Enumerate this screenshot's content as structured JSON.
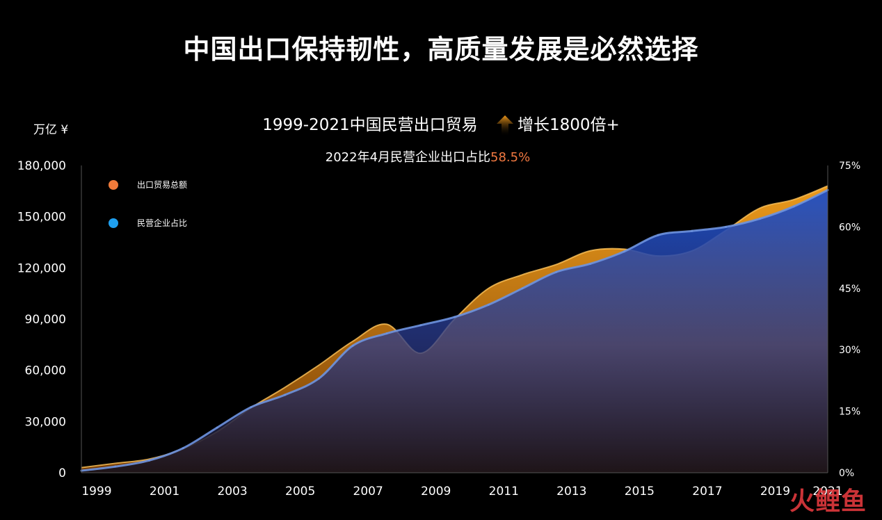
{
  "title": "中国出口保持韧性，高质量发展是必然选择",
  "subtitle_main": "1999-2021中国民营出口贸易",
  "subtitle_growth": "增长1800倍+",
  "note_prefix": "2022年4月民营企业出口占比",
  "note_value": "58.5%",
  "unit_label": "万亿 ¥",
  "watermark": "火鲤鱼",
  "colors": {
    "orange": "#f29a1b",
    "blue": "#2a57c8",
    "line_blue": "#5a8ce0",
    "highlight": "#f07840"
  },
  "chart_data": {
    "type": "area",
    "x_labels": [
      "1999",
      "2001",
      "2003",
      "2005",
      "2007",
      "2009",
      "2011",
      "2013",
      "2015",
      "2017",
      "2019",
      "2021"
    ],
    "x": [
      1999,
      2000,
      2001,
      2002,
      2003,
      2004,
      2005,
      2006,
      2007,
      2008,
      2009,
      2010,
      2011,
      2012,
      2013,
      2014,
      2015,
      2016,
      2017,
      2018,
      2019,
      2020,
      2021
    ],
    "series": [
      {
        "name": "出口贸易总额",
        "axis": "left",
        "color": "#f29a1b",
        "values": [
          3000,
          5500,
          8000,
          14000,
          24000,
          38000,
          50000,
          63000,
          77000,
          87000,
          70000,
          90000,
          108000,
          116000,
          122000,
          130000,
          131000,
          127000,
          130000,
          142000,
          155000,
          160000,
          168000
        ]
      },
      {
        "name": "民营企业占比",
        "axis": "right",
        "color": "#2a57c8",
        "values": [
          0.5,
          1.5,
          3,
          6,
          11,
          16,
          19,
          23,
          31,
          34,
          36,
          38,
          41,
          45,
          49,
          51,
          54,
          58,
          59,
          60,
          62,
          65,
          69
        ]
      }
    ],
    "y_left": {
      "min": 0,
      "max": 180000,
      "ticks": [
        "0",
        "30,000",
        "60,000",
        "90,000",
        "120,000",
        "150,000",
        "180,000"
      ]
    },
    "y_right": {
      "min": 0,
      "max": 75,
      "ticks": [
        "0%",
        "15%",
        "30%",
        "45%",
        "60%",
        "75%"
      ]
    },
    "legend": [
      "出口贸易总额",
      "民营企业占比"
    ],
    "legend_position": "top-left",
    "grid": false
  }
}
